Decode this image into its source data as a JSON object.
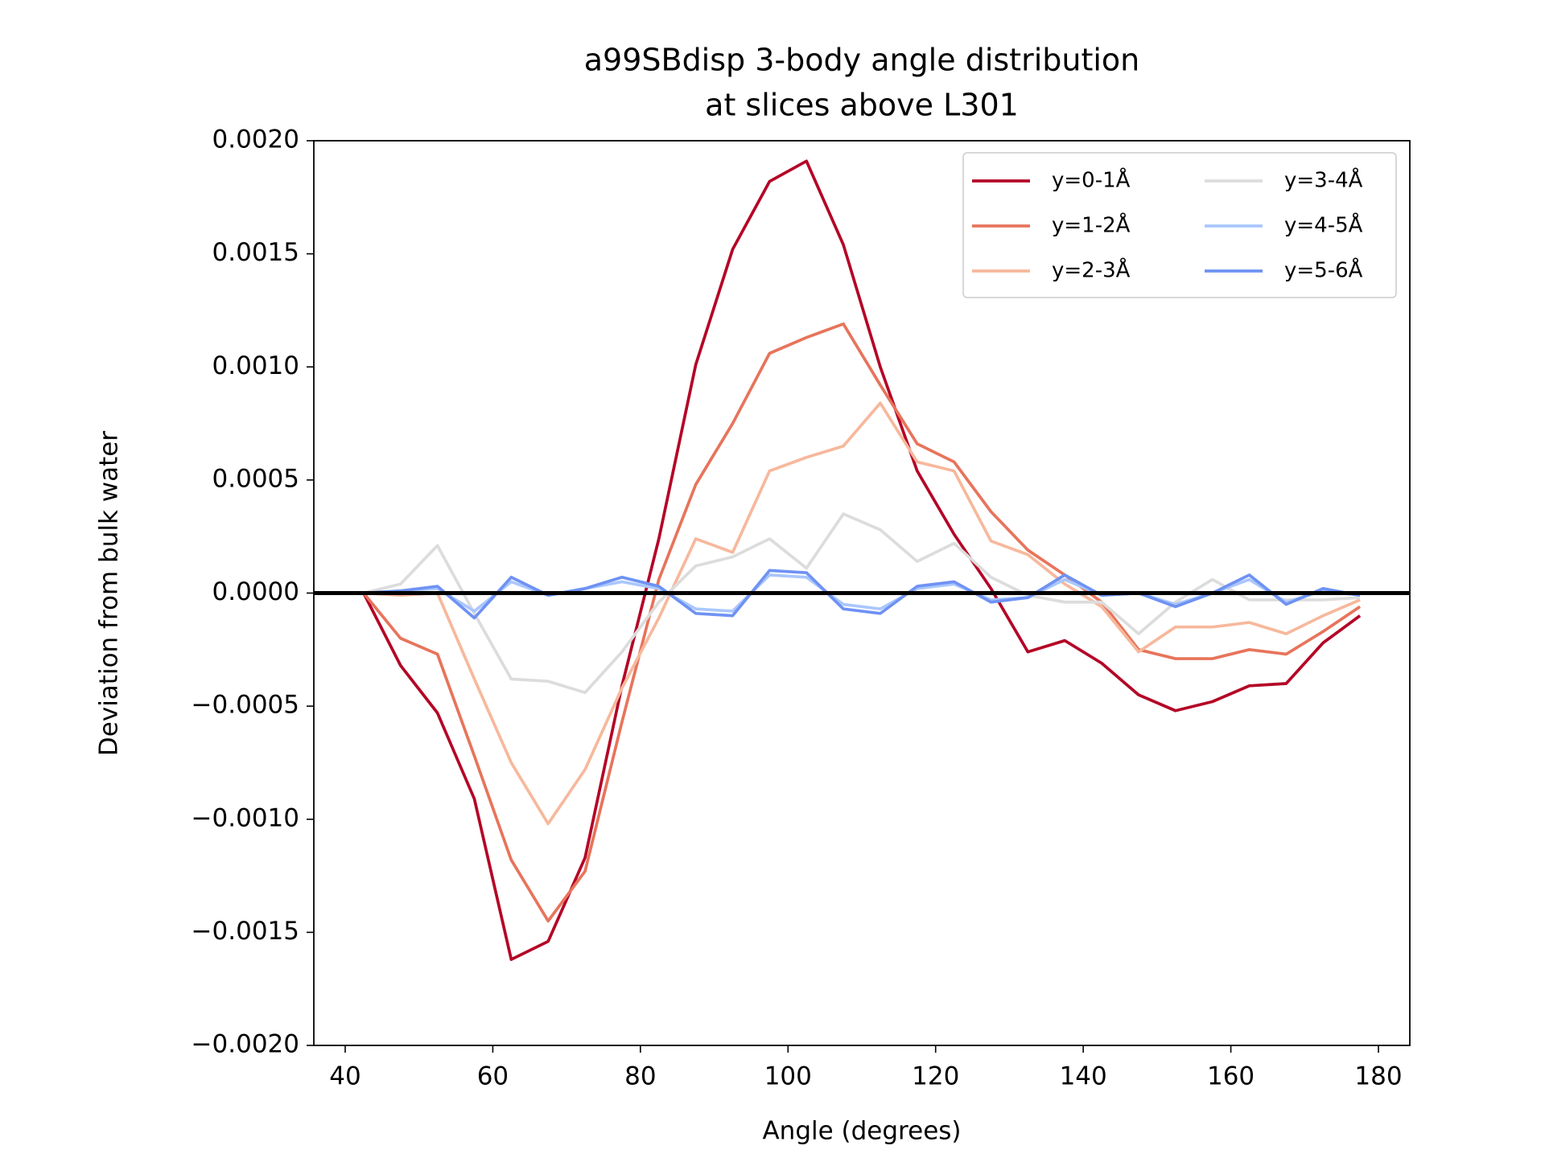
{
  "chart_data": {
    "type": "line",
    "title": [
      "a99SBdisp 3-body angle distribution",
      "at slices above L301"
    ],
    "x_label": "Angle (degrees)",
    "y_label": "Deviation from bulk water",
    "x": [
      42.5,
      47.5,
      52.5,
      57.5,
      62.5,
      67.5,
      72.5,
      77.5,
      82.5,
      87.5,
      92.5,
      97.5,
      102.5,
      107.5,
      112.5,
      117.5,
      122.5,
      127.5,
      132.5,
      137.5,
      142.5,
      147.5,
      152.5,
      157.5,
      162.5,
      167.5,
      172.5,
      177.5
    ],
    "series": [
      {
        "name": "y=0-1Å",
        "color": "#b40426",
        "values": [
          0,
          -0.00032,
          -0.00053,
          -0.00091,
          -0.00162,
          -0.00154,
          -0.00117,
          -0.00041,
          0.00024,
          0.00101,
          0.00152,
          0.00182,
          0.00191,
          0.00154,
          0.001,
          0.00054,
          0.00026,
          2e-05,
          -0.00026,
          -0.00021,
          -0.00031,
          -0.00045,
          -0.00052,
          -0.00048,
          -0.00041,
          -0.0004,
          -0.00022,
          -0.0001
        ]
      },
      {
        "name": "y=1-2Å",
        "color": "#e7745b",
        "values": [
          0,
          -0.0002,
          -0.00027,
          -0.00072,
          -0.00118,
          -0.00145,
          -0.00123,
          -0.00057,
          6e-05,
          0.00048,
          0.00075,
          0.00106,
          0.00113,
          0.00119,
          0.00092,
          0.00066,
          0.00058,
          0.00036,
          0.00019,
          8e-05,
          -4e-05,
          -0.00025,
          -0.00029,
          -0.00029,
          -0.00025,
          -0.00027,
          -0.00017,
          -6e-05
        ]
      },
      {
        "name": "y=2-3Å",
        "color": "#f7b89c",
        "values": [
          0,
          -1e-05,
          0,
          -0.00038,
          -0.00075,
          -0.00102,
          -0.00078,
          -0.00042,
          -0.00011,
          0.00024,
          0.00018,
          0.00054,
          0.0006,
          0.00065,
          0.00084,
          0.00058,
          0.00054,
          0.00023,
          0.00017,
          4e-05,
          -6e-05,
          -0.00026,
          -0.00015,
          -0.00015,
          -0.00013,
          -0.00018,
          -0.0001,
          -3e-05
        ]
      },
      {
        "name": "y=3-4Å",
        "color": "#dddcdc",
        "values": [
          0,
          4e-05,
          0.00021,
          -9e-05,
          -0.00038,
          -0.00039,
          -0.00044,
          -0.00026,
          -4e-05,
          0.00012,
          0.00016,
          0.00024,
          0.00011,
          0.00035,
          0.00028,
          0.00014,
          0.00022,
          7e-05,
          -1e-05,
          -4e-05,
          -4e-05,
          -0.00018,
          -4e-05,
          6e-05,
          -3e-05,
          -3e-05,
          -3e-05,
          -2e-05
        ]
      },
      {
        "name": "y=4-5Å",
        "color": "#aac7fd",
        "values": [
          0,
          1e-05,
          2e-05,
          -8e-05,
          5e-05,
          -1e-05,
          2e-05,
          5e-05,
          2e-05,
          -7e-05,
          -8e-05,
          8e-05,
          7e-05,
          -5e-05,
          -7e-05,
          2e-05,
          4e-05,
          -3e-05,
          -2e-05,
          6e-05,
          -1e-05,
          0,
          -5e-05,
          0,
          6e-05,
          -4e-05,
          1e-05,
          -1e-05
        ]
      },
      {
        "name": "y=5-6Å",
        "color": "#6f92f3",
        "values": [
          0,
          1e-05,
          3e-05,
          -0.00011,
          7e-05,
          -1e-05,
          2e-05,
          7e-05,
          3e-05,
          -9e-05,
          -0.0001,
          0.0001,
          9e-05,
          -7e-05,
          -9e-05,
          3e-05,
          5e-05,
          -4e-05,
          -2e-05,
          8e-05,
          -1e-05,
          0,
          -6e-05,
          0,
          8e-05,
          -5e-05,
          2e-05,
          -1e-05
        ]
      }
    ],
    "hline": 0,
    "xlim": [
      35.75,
      184.25
    ],
    "ylim": [
      -0.002,
      0.002
    ],
    "xticks": [
      40,
      60,
      80,
      100,
      120,
      140,
      160,
      180
    ],
    "yticks": [
      {
        "value": -0.002,
        "label": "−0.0020"
      },
      {
        "value": -0.0015,
        "label": "−0.0015"
      },
      {
        "value": -0.001,
        "label": "−0.0010"
      },
      {
        "value": -0.0005,
        "label": "−0.0005"
      },
      {
        "value": 0,
        "label": "0.0000"
      },
      {
        "value": 0.0005,
        "label": "0.0005"
      },
      {
        "value": 0.001,
        "label": "0.0010"
      },
      {
        "value": 0.0015,
        "label": "0.0015"
      },
      {
        "value": 0.002,
        "label": "0.0020"
      }
    ],
    "legend": "upper right",
    "legend_columns": 2
  }
}
